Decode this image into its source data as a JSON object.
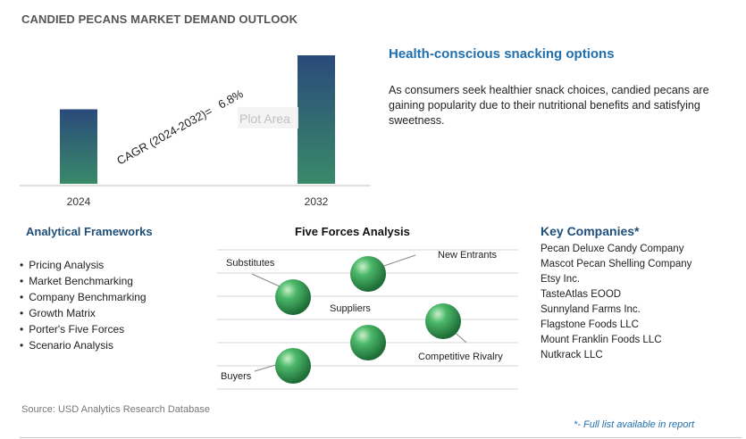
{
  "header": {
    "title": "CANDIED PECANS MARKET DEMAND OUTLOOK"
  },
  "chart_data": {
    "type": "bar",
    "categories": [
      "2024",
      "2032"
    ],
    "values": [
      0.58,
      1.0
    ],
    "annotations": {
      "cagr_label": "CAGR (2024-2032)=",
      "cagr_value": "6.8%",
      "plot_area_label": "Plot Area"
    },
    "colors": {
      "bar_top": "#2a4a7a",
      "bar_bottom": "#3a8a6a"
    }
  },
  "highlight": {
    "heading": "Health-conscious snacking options",
    "body": "As consumers seek healthier snack choices, candied pecans are gaining popularity due to their nutritional benefits and satisfying sweetness."
  },
  "frameworks": {
    "heading": "Analytical Frameworks",
    "items": [
      "Pricing Analysis",
      "Market Benchmarking",
      "Company Benchmarking",
      "Growth Matrix",
      "Porter's Five Forces",
      "Scenario Analysis"
    ]
  },
  "five_forces": {
    "heading": "Five Forces Analysis",
    "labels": {
      "substitutes": "Substitutes",
      "new_entrants": "New Entrants",
      "suppliers": "Suppliers",
      "competitive_rivalry": "Competitive Rivalry",
      "buyers": "Buyers"
    },
    "sphere_color": "#3aa05a"
  },
  "companies": {
    "heading": "Key Companies*",
    "items": [
      "Pecan Deluxe Candy Company",
      "Mascot Pecan Shelling Company",
      "Etsy Inc.",
      "TasteAtlas EOOD",
      "Sunnyland Farms Inc.",
      "Flagstone Foods LLC",
      "Mount Franklin Foods LLC",
      "Nutkrack LLC"
    ]
  },
  "footer": {
    "source": "Source: USD Analytics Research Database",
    "note": "*- Full list available in report"
  }
}
